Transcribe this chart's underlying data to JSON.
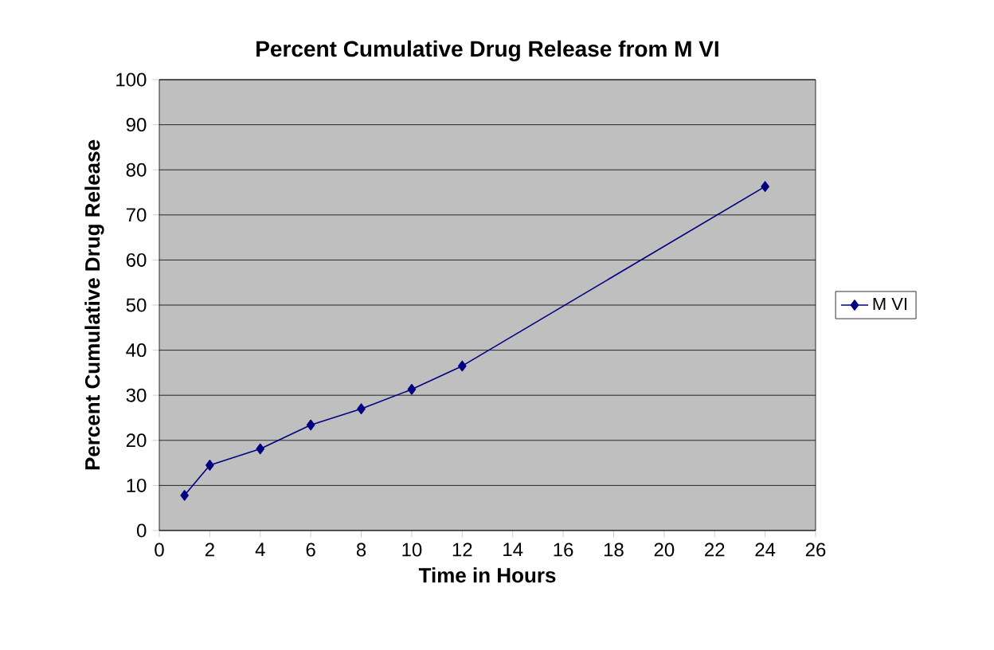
{
  "chart_data": {
    "type": "line",
    "title": "Percent Cumulative Drug Release from M VI",
    "xlabel": "Time in Hours",
    "ylabel": "Percent Cumulative Drug Release",
    "x": [
      1,
      2,
      4,
      6,
      8,
      10,
      12,
      24
    ],
    "series": [
      {
        "name": "M VI",
        "color": "#000080",
        "values": [
          7.8,
          14.5,
          18.1,
          23.4,
          27.0,
          31.3,
          36.5,
          76.3
        ]
      }
    ],
    "xlim": [
      0,
      26
    ],
    "xticks": [
      0,
      2,
      4,
      6,
      8,
      10,
      12,
      14,
      16,
      18,
      20,
      22,
      24,
      26
    ],
    "ylim": [
      0,
      100
    ],
    "yticks": [
      0,
      10,
      20,
      30,
      40,
      50,
      60,
      70,
      80,
      90,
      100
    ],
    "grid": "y",
    "legend": "right",
    "marker": "diamond",
    "line_style": "solid"
  }
}
